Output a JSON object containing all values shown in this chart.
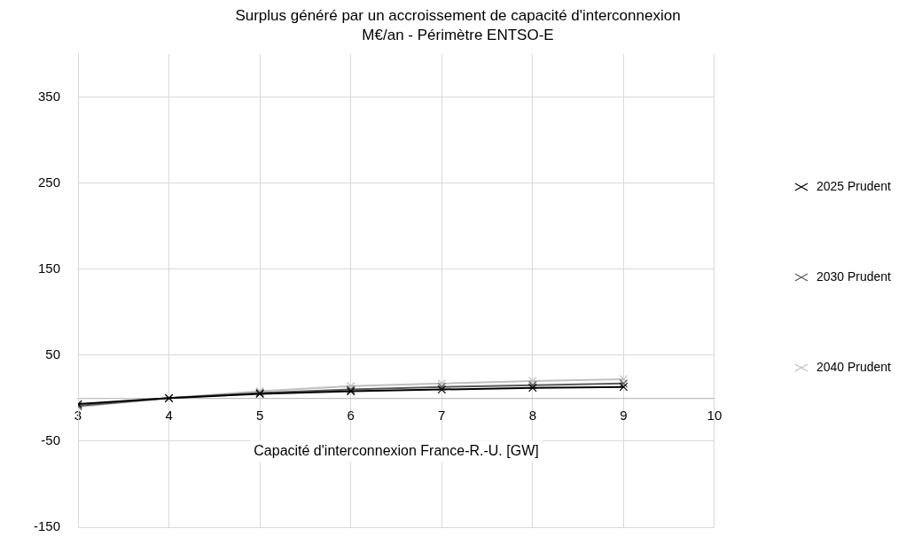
{
  "chart_data": {
    "type": "line",
    "title": "Surplus généré par un accroissement de capacité d'interconnexion",
    "subtitle": "M€/an - Périmètre ENTSO-E",
    "xlabel": "Capacité d'interconnexion France-R.-U. [GW]",
    "x": [
      3,
      4,
      5,
      6,
      7,
      8,
      9
    ],
    "series": [
      {
        "name": "2025 Prudent",
        "color": "#000000",
        "values": [
          -7,
          0,
          5,
          8,
          10,
          12,
          13
        ]
      },
      {
        "name": "2030 Prudent",
        "color": "#595959",
        "values": [
          -9,
          0,
          6,
          10,
          13,
          15,
          17
        ]
      },
      {
        "name": "2040 Prudent",
        "color": "#bfbfbf",
        "values": [
          -10,
          0,
          8,
          14,
          17,
          20,
          22
        ]
      }
    ],
    "xlim": [
      3,
      10
    ],
    "xticks": [
      3,
      4,
      5,
      6,
      7,
      8,
      9,
      10
    ],
    "ylim": [
      -150,
      400
    ],
    "yticks": [
      -150,
      -50,
      50,
      150,
      250,
      350
    ],
    "grid": true,
    "legend": "right",
    "marker": "cross",
    "line_style": "solid"
  }
}
